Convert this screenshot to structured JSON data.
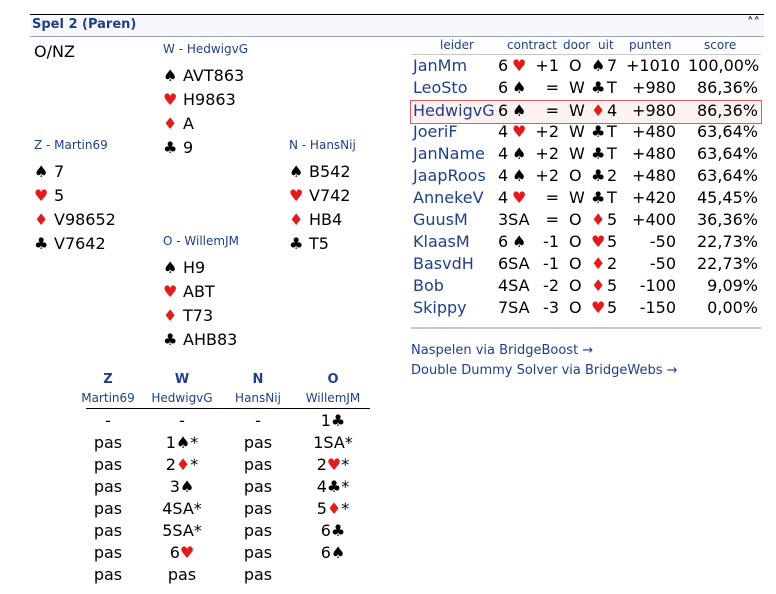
{
  "header": {
    "title": "Spel 2 (Paren)",
    "collapse_icon": "double-chevron-up-icon"
  },
  "deal": {
    "dealer_vul": "O/NZ",
    "west": {
      "label": "W - HedwigvG",
      "spades": "AVT863",
      "hearts": "H9863",
      "diamonds": "A",
      "clubs": "9"
    },
    "north": {
      "label": "N - HansNij",
      "spades": "B542",
      "hearts": "V742",
      "diamonds": "HB4",
      "clubs": "T5"
    },
    "south": {
      "label": "Z - Martin69",
      "spades": "7",
      "hearts": "5",
      "diamonds": "V98652",
      "clubs": "V7642"
    },
    "east": {
      "label": "O - WillemJM",
      "spades": "H9",
      "hearts": "ABT",
      "diamonds": "T73",
      "clubs": "AHB83"
    }
  },
  "suits": {
    "spades": "♠",
    "hearts": "♥",
    "diamonds": "♦",
    "clubs": "♣"
  },
  "colors": {
    "red": "#e31b1b",
    "accent": "#1f3f8a",
    "highlight_border": "#e05a5a"
  },
  "results": {
    "headers": [
      "leider",
      "contract",
      "door",
      "uit",
      "punten",
      "score"
    ],
    "rows": [
      {
        "leader": "JanMm",
        "lvl": "6",
        "suit": "♥",
        "res": "+1",
        "door": "O",
        "lead_suit": "♠",
        "lead": "7",
        "punten": "+1010",
        "score": "100,00%"
      },
      {
        "leader": "LeoSto",
        "lvl": "6",
        "suit": "♠",
        "res": "=",
        "door": "W",
        "lead_suit": "♣",
        "lead": "T",
        "punten": "+980",
        "score": "86,36%"
      },
      {
        "leader": "HedwigvG",
        "lvl": "6",
        "suit": "♠",
        "res": "=",
        "door": "W",
        "lead_suit": "♦",
        "lead": "4",
        "punten": "+980",
        "score": "86,36%"
      },
      {
        "leader": "JoeriF",
        "lvl": "4",
        "suit": "♥",
        "res": "+2",
        "door": "W",
        "lead_suit": "♣",
        "lead": "T",
        "punten": "+480",
        "score": "63,64%"
      },
      {
        "leader": "JanName",
        "lvl": "4",
        "suit": "♠",
        "res": "+2",
        "door": "W",
        "lead_suit": "♣",
        "lead": "T",
        "punten": "+480",
        "score": "63,64%"
      },
      {
        "leader": "JaapRoos",
        "lvl": "4",
        "suit": "♠",
        "res": "+2",
        "door": "O",
        "lead_suit": "♣",
        "lead": "2",
        "punten": "+480",
        "score": "63,64%"
      },
      {
        "leader": "AnnekeV",
        "lvl": "4",
        "suit": "♥",
        "res": "=",
        "door": "W",
        "lead_suit": "♣",
        "lead": "T",
        "punten": "+420",
        "score": "45,45%"
      },
      {
        "leader": "GuusM",
        "lvl": "3SA",
        "suit": "",
        "res": "=",
        "door": "O",
        "lead_suit": "♦",
        "lead": "5",
        "punten": "+400",
        "score": "36,36%"
      },
      {
        "leader": "KlaasM",
        "lvl": "6",
        "suit": "♠",
        "res": "-1",
        "door": "O",
        "lead_suit": "♥",
        "lead": "5",
        "punten": "-50",
        "score": "22,73%"
      },
      {
        "leader": "BasvdH",
        "lvl": "6SA",
        "suit": "",
        "res": "-1",
        "door": "O",
        "lead_suit": "♦",
        "lead": "2",
        "punten": "-50",
        "score": "22,73%"
      },
      {
        "leader": "Bob",
        "lvl": "4SA",
        "suit": "",
        "res": "-2",
        "door": "O",
        "lead_suit": "♦",
        "lead": "5",
        "punten": "-100",
        "score": "9,09%"
      },
      {
        "leader": "Skippy",
        "lvl": "7SA",
        "suit": "",
        "res": "-3",
        "door": "O",
        "lead_suit": "♥",
        "lead": "5",
        "punten": "-150",
        "score": "0,00%"
      }
    ],
    "highlighted_index": 2
  },
  "links": {
    "naspelen": "Naspelen via BridgeBoost →",
    "dds": "Double Dummy Solver via BridgeWebs →"
  },
  "bidding": {
    "headers": [
      {
        "dir": "Z",
        "name": "Martin69"
      },
      {
        "dir": "W",
        "name": "HedwigvG"
      },
      {
        "dir": "N",
        "name": "HansNij"
      },
      {
        "dir": "O",
        "name": "WillemJM"
      }
    ],
    "rows": [
      [
        "-",
        "-",
        "-",
        "1♣"
      ],
      [
        "pas",
        "1♠*",
        "pas",
        "1SA*"
      ],
      [
        "pas",
        "2♦*",
        "pas",
        "2♥*"
      ],
      [
        "pas",
        "3♠",
        "pas",
        "4♣*"
      ],
      [
        "pas",
        "4SA*",
        "pas",
        "5♦*"
      ],
      [
        "pas",
        "5SA*",
        "pas",
        "6♣"
      ],
      [
        "pas",
        "6♥",
        "pas",
        "6♠"
      ],
      [
        "pas",
        "pas",
        "pas",
        ""
      ]
    ]
  }
}
